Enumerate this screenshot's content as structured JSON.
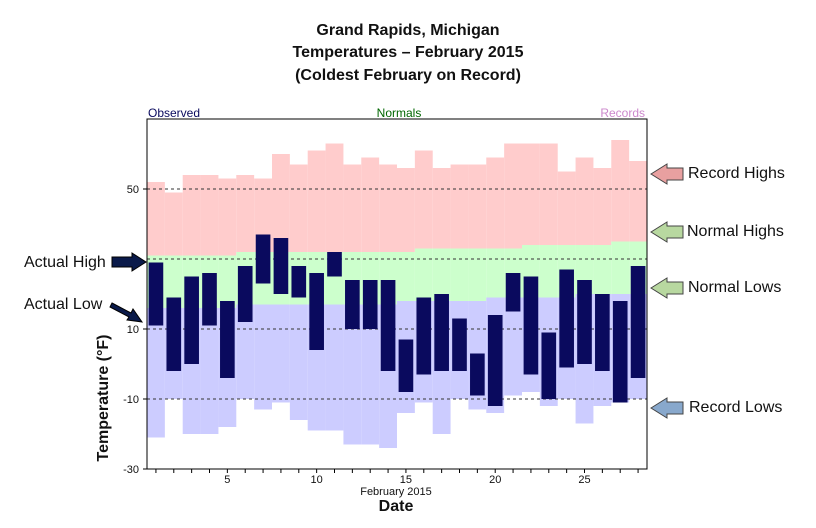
{
  "chart_data": {
    "type": "bar",
    "title": "Grand Rapids, Michigan",
    "subtitle": "Temperatures – February 2015",
    "subtitle2": "(Coldest February on Record)",
    "xlabel": "Date",
    "xlabel_sub": "February 2015",
    "ylabel": "Temperature (°F)",
    "ylim": [
      -30,
      70
    ],
    "xlim": [
      0.5,
      28.5
    ],
    "yticks": [
      50,
      10,
      -10,
      -30
    ],
    "xticks": [
      5,
      10,
      15,
      20,
      25
    ],
    "gridlines_y": [
      50,
      30,
      10,
      -10
    ],
    "legend": {
      "observed": "Observed",
      "normals": "Normals",
      "records": "Records"
    },
    "colors": {
      "observed": "#0a0a5e",
      "normals_fill": "#ccffcc",
      "records_high_fill": "#ffcccc",
      "records_low_fill": "#ccccff",
      "legend_observed": "#0a0a5e",
      "legend_normals": "#006600",
      "legend_records": "#cc88cc",
      "arrow_record_highs": "#e8a0a0",
      "arrow_normal_highs": "#b8d8a0",
      "arrow_normal_lows": "#b8d8a0",
      "arrow_record_lows": "#88a8cc",
      "arrow_actual": "#0a1a4a"
    },
    "days": [
      1,
      2,
      3,
      4,
      5,
      6,
      7,
      8,
      9,
      10,
      11,
      12,
      13,
      14,
      15,
      16,
      17,
      18,
      19,
      20,
      21,
      22,
      23,
      24,
      25,
      26,
      27,
      28
    ],
    "observed_high": [
      29,
      19,
      25,
      26,
      18,
      28,
      37,
      36,
      28,
      26,
      32,
      24,
      24,
      24,
      7,
      19,
      20,
      13,
      3,
      14,
      26,
      25,
      9,
      27,
      24,
      20,
      18,
      28
    ],
    "observed_low": [
      11,
      -2,
      0,
      11,
      -4,
      12,
      23,
      20,
      19,
      4,
      25,
      10,
      10,
      -2,
      -8,
      -3,
      -2,
      -2,
      -9,
      -12,
      15,
      -3,
      -10,
      -1,
      0,
      -2,
      -11,
      -4
    ],
    "record_high": [
      52,
      49,
      54,
      54,
      53,
      54,
      53,
      60,
      57,
      61,
      63,
      57,
      59,
      57,
      56,
      61,
      56,
      57,
      57,
      59,
      63,
      63,
      63,
      55,
      59,
      56,
      64,
      58
    ],
    "normal_high": [
      31,
      31,
      31,
      31,
      31,
      32,
      32,
      32,
      32,
      32,
      32,
      32,
      32,
      32,
      32,
      33,
      33,
      33,
      33,
      33,
      33,
      34,
      34,
      34,
      34,
      34,
      35,
      35
    ],
    "normal_low": [
      16,
      16,
      16,
      16,
      16,
      17,
      17,
      17,
      17,
      17,
      17,
      17,
      17,
      17,
      18,
      18,
      18,
      18,
      18,
      19,
      19,
      19,
      19,
      19,
      20,
      20,
      20,
      20
    ],
    "record_low": [
      -21,
      -10,
      -20,
      -20,
      -18,
      -10,
      -13,
      -11,
      -16,
      -19,
      -19,
      -23,
      -23,
      -24,
      -14,
      -11,
      -20,
      -10,
      -13,
      -14,
      -9,
      -8,
      -12,
      -10,
      -17,
      -12,
      -11,
      -10
    ],
    "annotations": {
      "actual_high": "Actual High",
      "actual_low": "Actual Low",
      "record_highs": "Record Highs",
      "normal_highs": "Normal Highs",
      "normal_lows": "Normal Lows",
      "record_lows": "Record Lows"
    }
  }
}
